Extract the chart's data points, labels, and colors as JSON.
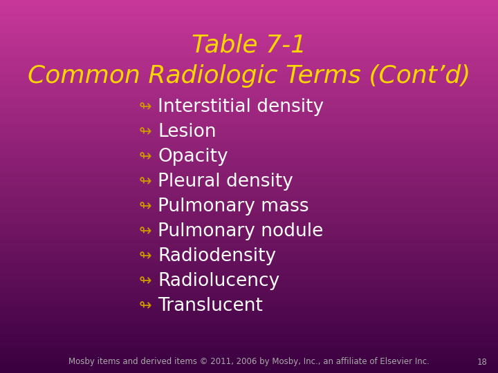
{
  "title_line1": "Table 7-1",
  "title_line2": "Common Radiologic Terms (Cont’d)",
  "title_color": "#FFD700",
  "bullet_items": [
    "Interstitial density",
    "Lesion",
    "Opacity",
    "Pleural density",
    "Pulmonary mass",
    "Pulmonary nodule",
    "Radiodensity",
    "Radiolucency",
    "Translucent"
  ],
  "bullet_symbol": "↬",
  "bullet_color": "#CC9900",
  "text_color": "#FFFFFF",
  "bg_color_top": "#C8389A",
  "bg_color_bottom": "#5A1060",
  "footer_text": "Mosby items and derived items © 2011, 2006 by Mosby, Inc., an affiliate of Elsevier Inc.",
  "footer_page": "18",
  "footer_color": "#AAAAAA",
  "title_fontsize": 26,
  "bullet_fontsize": 19,
  "footer_fontsize": 8.5
}
